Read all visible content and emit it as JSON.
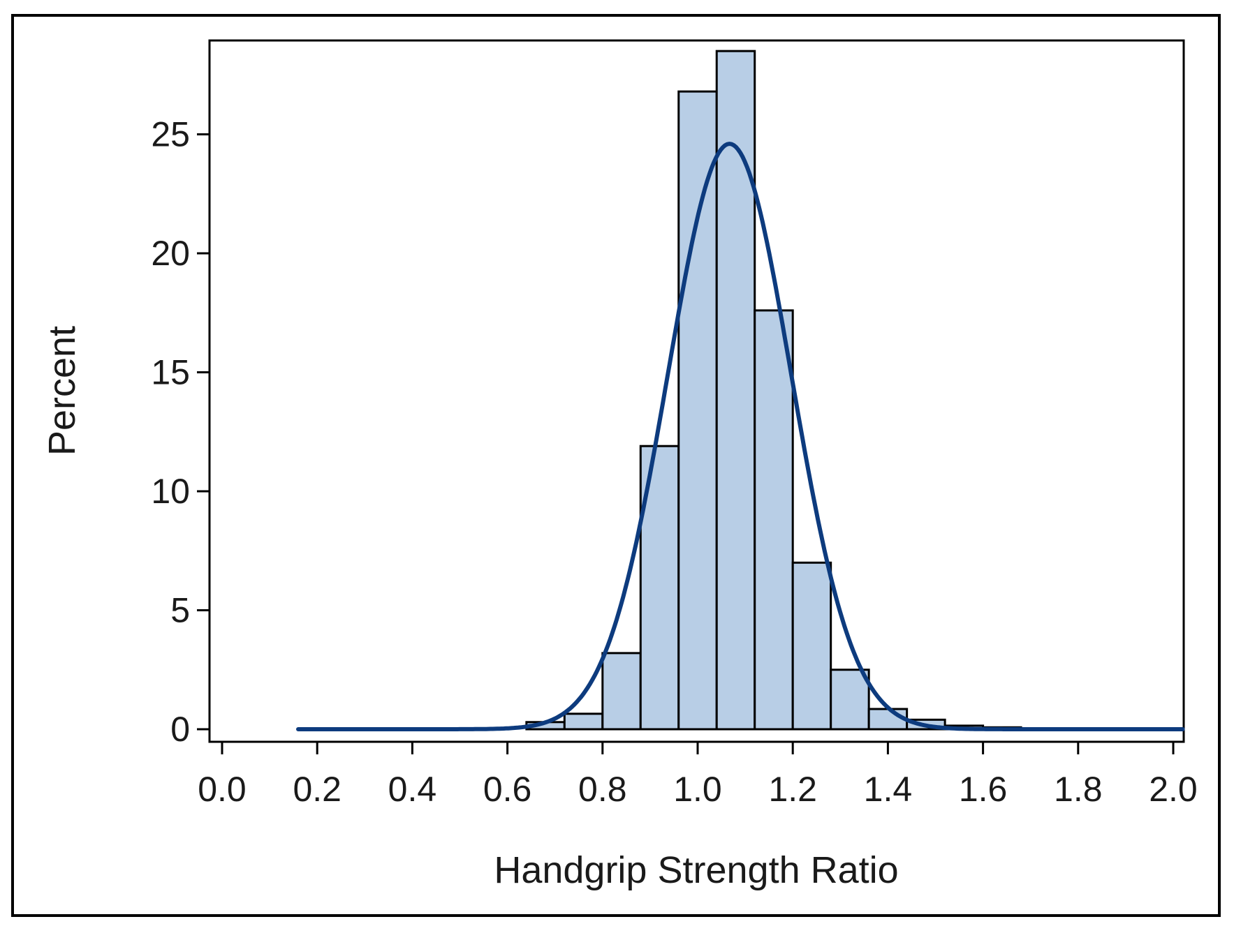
{
  "chart_data": {
    "type": "bar",
    "subtype": "histogram",
    "xlabel": "Handgrip Strength Ratio",
    "ylabel": "Percent",
    "xlim": [
      0.0,
      2.0
    ],
    "ylim": [
      0,
      28.5
    ],
    "x_ticks": [
      "0.0",
      "0.2",
      "0.4",
      "0.6",
      "0.8",
      "1.0",
      "1.2",
      "1.4",
      "1.6",
      "1.8",
      "2.0"
    ],
    "y_ticks": [
      "0",
      "5",
      "10",
      "15",
      "20",
      "25"
    ],
    "bins": [
      {
        "x0": 0.64,
        "x1": 0.72,
        "value": 0.3
      },
      {
        "x0": 0.72,
        "x1": 0.8,
        "value": 0.65
      },
      {
        "x0": 0.8,
        "x1": 0.88,
        "value": 3.2
      },
      {
        "x0": 0.88,
        "x1": 0.96,
        "value": 11.9
      },
      {
        "x0": 0.96,
        "x1": 1.04,
        "value": 26.8
      },
      {
        "x0": 1.04,
        "x1": 1.12,
        "value": 28.5
      },
      {
        "x0": 1.12,
        "x1": 1.2,
        "value": 17.6
      },
      {
        "x0": 1.2,
        "x1": 1.28,
        "value": 7.0
      },
      {
        "x0": 1.28,
        "x1": 1.36,
        "value": 2.5
      },
      {
        "x0": 1.36,
        "x1": 1.44,
        "value": 0.85
      },
      {
        "x0": 1.44,
        "x1": 1.52,
        "value": 0.4
      },
      {
        "x0": 1.52,
        "x1": 1.6,
        "value": 0.15
      },
      {
        "x0": 1.6,
        "x1": 1.68,
        "value": 0.08
      }
    ],
    "normal_curve": {
      "mean": 1.067,
      "peak_percent": 24.6,
      "x_start": 0.16,
      "x_end": 2.02
    },
    "colors": {
      "bar_fill": "#b8cee6",
      "bar_stroke": "#000000",
      "curve": "#0d3b7e"
    },
    "grid": false,
    "legend": "none"
  }
}
